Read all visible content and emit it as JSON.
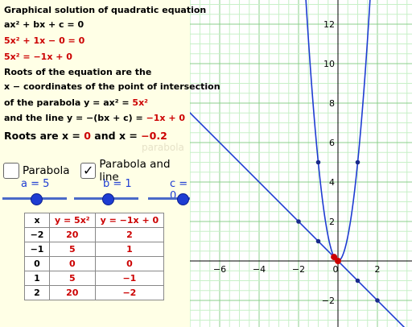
{
  "title": "Graphical solution of quadratic equation",
  "eq_general": "ax² + bx + c = 0",
  "eq_sub": "5x² + 1x − 0 = 0",
  "eq_rearranged": "5x² = −1x + 0",
  "explanation": {
    "line1": "Roots of the equation are the",
    "line2": "x − coordinates of the point of intersection",
    "line3_prefix": "of the parabola y = ax² = ",
    "line3_value": "5x²",
    "line4_prefix": "and the line y = −(bx + c) = ",
    "line4_value": "−1x + 0"
  },
  "roots": {
    "prefix": "Roots are x = ",
    "root1": "0",
    "middle": " and x = ",
    "root2": "−0.2"
  },
  "faint_text": "parabola",
  "checkboxes": [
    {
      "label": "Parabola",
      "checked": false
    },
    {
      "label": "Parabola and line",
      "checked": true
    }
  ],
  "sliders": [
    {
      "label": "a = 5",
      "value": 5
    },
    {
      "label": "b = 1",
      "value": 1
    },
    {
      "label": "c = 0",
      "value": 0
    }
  ],
  "table": {
    "headers": [
      "x",
      "y = 5x²",
      "y = −1x + 0"
    ],
    "rows": [
      [
        "−2",
        "20",
        "2"
      ],
      [
        "−1",
        "5",
        "1"
      ],
      [
        "0",
        "0",
        "0"
      ],
      [
        "1",
        "5",
        "−1"
      ],
      [
        "2",
        "20",
        "−2"
      ]
    ]
  },
  "graph": {
    "x_ticks": [
      "−6",
      "−4",
      "−2",
      "0",
      "2"
    ],
    "y_ticks": [
      "12",
      "10",
      "8",
      "6",
      "4",
      "2",
      "−2"
    ],
    "colors": {
      "curve": "#1e3cd2",
      "grid_minor": "#c8f0c8",
      "grid_major": "#8ccf8c",
      "highlight": "#cc0000",
      "panel_bg": "#ffffe6"
    }
  },
  "chart_data": {
    "type": "line",
    "title": "",
    "xlim": [
      -8.5,
      4
    ],
    "ylim": [
      -3.5,
      13.5
    ],
    "grid": true,
    "series": [
      {
        "name": "y = 5x²",
        "function": "5x^2",
        "x": [
          -2,
          -1,
          0,
          1,
          2
        ],
        "y": [
          20,
          5,
          0,
          5,
          20
        ]
      },
      {
        "name": "y = −1x + 0",
        "function": "-x",
        "x": [
          -2,
          -1,
          0,
          1,
          2
        ],
        "y": [
          2,
          1,
          0,
          -1,
          -2
        ]
      }
    ],
    "intersections": [
      {
        "x": 0,
        "y": 0
      },
      {
        "x": -0.2,
        "y": 0.2
      }
    ]
  }
}
